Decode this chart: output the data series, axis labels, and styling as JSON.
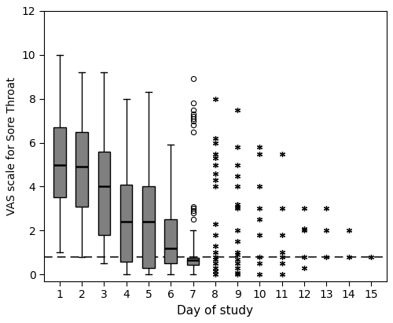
{
  "title": "",
  "xlabel": "Day of study",
  "ylabel": "VAS scale for Sore Throat",
  "ylim": [
    -0.3,
    12
  ],
  "xlim": [
    0.3,
    15.7
  ],
  "yticks": [
    0,
    2,
    4,
    6,
    8,
    10,
    12
  ],
  "xticks": [
    1,
    2,
    3,
    4,
    5,
    6,
    7,
    8,
    9,
    10,
    11,
    12,
    13,
    14,
    15
  ],
  "dashed_line_y": 0.8,
  "box_color": "#808080",
  "boxes": {
    "1": {
      "q1": 3.5,
      "median": 5.0,
      "q3": 6.7,
      "whisker_low": 1.0,
      "whisker_high": 10.0
    },
    "2": {
      "q1": 3.1,
      "median": 4.9,
      "q3": 6.5,
      "whisker_low": 0.8,
      "whisker_high": 9.2
    },
    "3": {
      "q1": 1.8,
      "median": 4.0,
      "q3": 5.6,
      "whisker_low": 0.5,
      "whisker_high": 9.2
    },
    "4": {
      "q1": 0.6,
      "median": 2.4,
      "q3": 4.1,
      "whisker_low": 0.0,
      "whisker_high": 8.0
    },
    "5": {
      "q1": 0.3,
      "median": 2.4,
      "q3": 4.0,
      "whisker_low": 0.0,
      "whisker_high": 8.3
    },
    "6": {
      "q1": 0.5,
      "median": 1.2,
      "q3": 2.5,
      "whisker_low": 0.0,
      "whisker_high": 5.9
    },
    "7": {
      "q1": 0.45,
      "median": 0.65,
      "q3": 0.75,
      "whisker_low": 0.0,
      "whisker_high": 2.0
    }
  },
  "outliers": {
    "7": [
      2.5,
      2.8,
      2.9,
      3.0,
      3.1,
      6.5,
      6.8,
      7.0,
      7.1,
      7.2,
      7.3,
      7.5,
      7.8,
      8.9
    ]
  },
  "extremes": {
    "8": [
      0.0,
      0.15,
      0.3,
      0.5,
      0.7,
      0.8,
      1.0,
      1.3,
      1.8,
      2.3,
      4.0,
      4.3,
      4.6,
      5.0,
      5.3,
      5.5,
      6.0,
      6.2,
      8.0
    ],
    "9": [
      0.0,
      0.1,
      0.3,
      0.5,
      0.7,
      0.9,
      1.0,
      1.5,
      2.0,
      3.0,
      3.1,
      3.2,
      4.0,
      4.5,
      5.0,
      5.8,
      7.5
    ],
    "10": [
      0.0,
      0.5,
      0.8,
      1.8,
      2.5,
      3.0,
      4.0,
      5.5,
      5.8
    ],
    "11": [
      0.0,
      0.5,
      0.8,
      1.0,
      1.8,
      3.0,
      5.5
    ],
    "12": [
      0.3,
      0.8,
      2.0,
      2.1,
      3.0
    ],
    "13": [
      0.8,
      2.0,
      3.0
    ],
    "14": [
      0.8,
      2.0
    ],
    "15": [
      0.8
    ]
  },
  "background_color": "#ffffff",
  "box_width": 0.55,
  "linewidth": 1.0
}
